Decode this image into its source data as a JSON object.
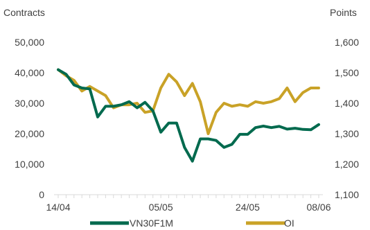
{
  "chart_data": {
    "type": "line",
    "x_tick_labels": [
      "14/04",
      "05/05",
      "24/05",
      "08/06"
    ],
    "left_axis": {
      "label": "Contracts",
      "range": [
        0,
        50000
      ],
      "ticks": [
        "0",
        "10,000",
        "20,000",
        "30,000",
        "40,000",
        "50,000"
      ]
    },
    "right_axis": {
      "label": "Points",
      "range": [
        1100,
        1600
      ],
      "ticks": [
        "1,100",
        "1,200",
        "1,300",
        "1,400",
        "1,500",
        "1,600"
      ]
    },
    "grid": false,
    "legend_position": "bottom",
    "series": [
      {
        "name": "VN30F1M",
        "axis": "right",
        "color": "#006a4e",
        "values": [
          1510,
          1495,
          1460,
          1450,
          1447,
          1355,
          1390,
          1390,
          1395,
          1405,
          1385,
          1403,
          1375,
          1305,
          1335,
          1335,
          1255,
          1210,
          1283,
          1283,
          1278,
          1255,
          1265,
          1298,
          1298,
          1320,
          1325,
          1320,
          1324,
          1315,
          1318,
          1314,
          1313,
          1330
        ]
      },
      {
        "name": "OI",
        "axis": "left",
        "color": "#c9a227",
        "values": [
          41000,
          39000,
          37500,
          34000,
          35500,
          34000,
          32500,
          28500,
          29500,
          29500,
          30000,
          27000,
          27500,
          35000,
          39500,
          37000,
          32500,
          36500,
          30500,
          20000,
          27000,
          30000,
          29000,
          29500,
          29000,
          30500,
          30000,
          30500,
          31500,
          35000,
          30500,
          33500,
          35000,
          35000
        ]
      }
    ]
  }
}
